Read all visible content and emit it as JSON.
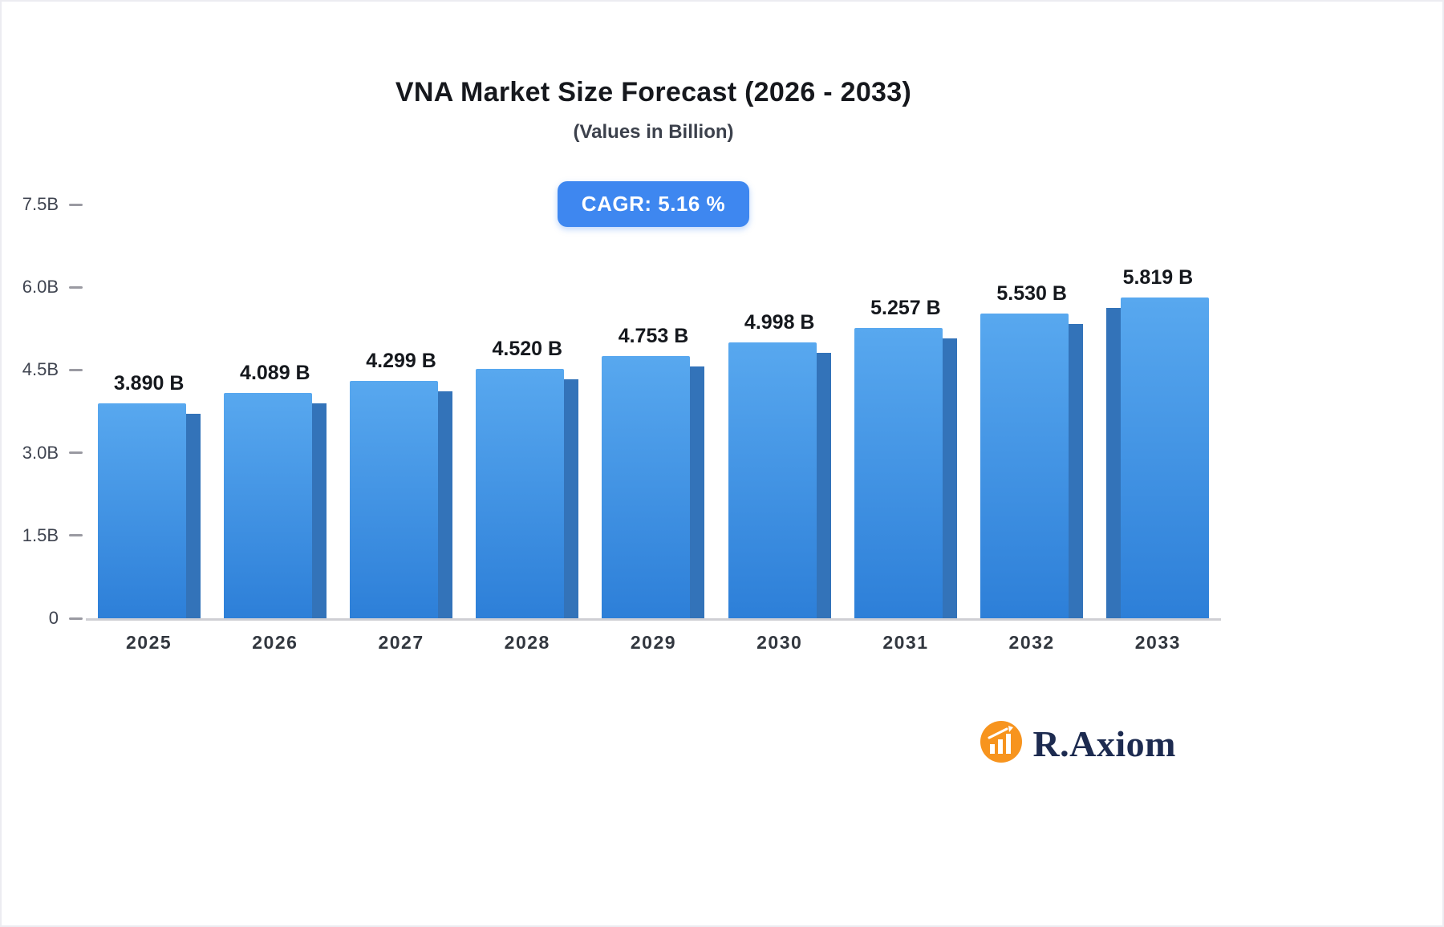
{
  "header": {
    "title": "VNA Market Size Forecast (2026 - 2033)",
    "subtitle": "(Values in Billion)",
    "cagr_badge": "CAGR: 5.16 %"
  },
  "footer": {
    "brand": "R.Axiom",
    "brand_icon": "bar-chart-logo-icon"
  },
  "colors": {
    "badge_blue": "#3e87f0",
    "bar_top": "#58a8ef",
    "bar_bottom": "#2d7fd8",
    "bar_side": "#3373b9",
    "logo_orange": "#f7941e",
    "logo_text": "#1d2b50",
    "axis_line": "#cfcfd4"
  },
  "chart_data": {
    "type": "bar",
    "title": "VNA Market Size Forecast (2026 - 2033)",
    "subtitle": "(Values in Billion)",
    "categories": [
      "2025",
      "2026",
      "2027",
      "2028",
      "2029",
      "2030",
      "2031",
      "2032",
      "2033"
    ],
    "values": [
      3.89,
      4.089,
      4.299,
      4.52,
      4.753,
      4.998,
      5.257,
      5.53,
      5.819
    ],
    "value_labels": [
      "3.890 B",
      "4.089 B",
      "4.299 B",
      "4.520 B",
      "4.753 B",
      "4.998 B",
      "5.257 B",
      "5.530 B",
      "5.819 B"
    ],
    "xlabel": "",
    "ylabel": "",
    "ylim": [
      0,
      7.5
    ],
    "ytick_values": [
      0,
      1.5,
      3.0,
      4.5,
      6.0,
      7.5
    ],
    "ytick_labels": [
      "0",
      "1.5B",
      "3.0B",
      "4.5B",
      "6.0B",
      "7.5B"
    ],
    "grid": false,
    "legend": false,
    "annotations": [
      "CAGR: 5.16 %"
    ]
  }
}
